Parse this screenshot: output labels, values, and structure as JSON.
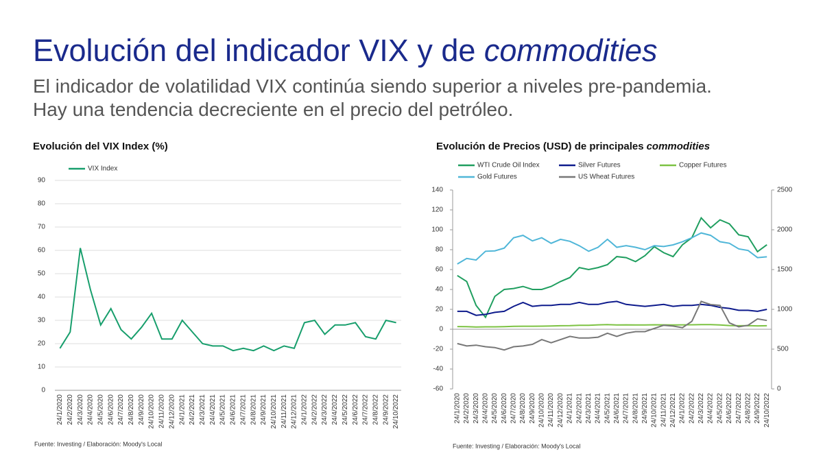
{
  "slide": {
    "title": "Evolución del indicador VIX y de",
    "title_italic": "commodities",
    "subtitle": [
      "El indicador de volatilidad VIX continúa siendo superior a niveles pre-pandemia.",
      "Hay una tendencia decreciente en el precio del petróleo."
    ]
  },
  "chart_data": [
    {
      "type": "line",
      "title": "Evolución del VIX Index (%)",
      "legend": "top-left",
      "grid": true,
      "categories": [
        "24/1/2020",
        "24/2/2020",
        "24/3/2020",
        "24/4/2020",
        "24/5/2020",
        "24/6/2020",
        "24/7/2020",
        "24/8/2020",
        "24/9/2020",
        "24/10/2020",
        "24/11/2020",
        "24/12/2020",
        "24/1/2021",
        "24/2/2021",
        "24/3/2021",
        "24/4/2021",
        "24/5/2021",
        "24/6/2021",
        "24/7/2021",
        "24/8/2021",
        "24/9/2021",
        "24/10/2021",
        "24/11/2021",
        "24/12/2021",
        "24/1/2022",
        "24/2/2022",
        "24/3/2022",
        "24/4/2022",
        "24/5/2022",
        "24/6/2022",
        "24/7/2022",
        "24/8/2022",
        "24/9/2022",
        "24/10/2022"
      ],
      "series": [
        {
          "name": "VIX Index",
          "color": "#179e6c",
          "values": [
            18,
            25,
            61,
            43,
            28,
            35,
            26,
            22,
            27,
            33,
            22,
            22,
            30,
            25,
            20,
            19,
            19,
            17,
            18,
            17,
            19,
            17,
            19,
            18,
            29,
            30,
            24,
            28,
            28,
            29,
            23,
            22,
            30,
            29
          ]
        }
      ],
      "ylim": [
        0,
        90
      ],
      "yticks": [
        0,
        10,
        20,
        30,
        40,
        50,
        60,
        70,
        80,
        90
      ],
      "source": "Fuente: Investing / Elaboración: Moody's Local"
    },
    {
      "type": "line",
      "title": "Evolución de Precios (USD) de principales",
      "title_italic": "commodities",
      "legend": "top",
      "grid": false,
      "categories": [
        "24/1/2020",
        "24/2/2020",
        "24/3/2020",
        "24/4/2020",
        "24/5/2020",
        "24/6/2020",
        "24/7/2020",
        "24/8/2020",
        "24/9/2020",
        "24/10/2020",
        "24/11/2020",
        "24/12/2020",
        "24/1/2021",
        "24/2/2021",
        "24/3/2021",
        "24/4/2021",
        "24/5/2021",
        "24/6/2021",
        "24/7/2021",
        "24/8/2021",
        "24/9/2021",
        "24/10/2021",
        "24/11/2021",
        "24/12/2021",
        "24/1/2022",
        "24/2/2022",
        "24/3/2022",
        "24/4/2022",
        "24/5/2022",
        "24/6/2022",
        "24/7/2022",
        "24/8/2022",
        "24/9/2022",
        "24/10/2022"
      ],
      "series": [
        {
          "name": "WTI Crude Oil Index",
          "color": "#1f9e5f",
          "values": [
            54,
            48,
            24,
            12,
            33,
            40,
            41,
            43,
            40,
            40,
            43,
            48,
            52,
            62,
            60,
            62,
            65,
            73,
            72,
            68,
            74,
            83,
            77,
            73,
            85,
            92,
            112,
            102,
            110,
            106,
            95,
            93,
            78,
            85
          ]
        },
        {
          "name": "Silver Futures",
          "color": "#0d1a8c",
          "values": [
            18,
            18,
            14,
            15,
            17,
            18,
            23,
            27,
            23,
            24,
            24,
            25,
            25,
            27,
            25,
            25,
            27,
            28,
            25,
            24,
            23,
            24,
            25,
            23,
            24,
            24,
            25,
            24,
            22,
            21,
            19,
            19,
            18,
            20
          ]
        },
        {
          "name": "Copper Futures",
          "color": "#7cc242",
          "values": [
            2.7,
            2.6,
            2.2,
            2.4,
            2.4,
            2.6,
            2.9,
            3.0,
            3.0,
            3.1,
            3.3,
            3.5,
            3.6,
            4.0,
            4.0,
            4.4,
            4.6,
            4.3,
            4.4,
            4.3,
            4.3,
            4.5,
            4.4,
            4.3,
            4.4,
            4.5,
            4.6,
            4.6,
            4.3,
            3.7,
            3.5,
            3.6,
            3.4,
            3.5
          ]
        },
        {
          "name": "Gold Futures",
          "color": "#4fb6d8",
          "axis": "y2",
          "values": [
            1570,
            1640,
            1620,
            1730,
            1735,
            1770,
            1900,
            1930,
            1860,
            1900,
            1830,
            1880,
            1855,
            1800,
            1730,
            1780,
            1880,
            1780,
            1800,
            1780,
            1750,
            1800,
            1790,
            1810,
            1850,
            1900,
            1960,
            1930,
            1850,
            1830,
            1760,
            1740,
            1650,
            1660
          ]
        },
        {
          "name": "US Wheat Futures",
          "color": "#777777",
          "axis": "y2",
          "values": [
            570,
            540,
            550,
            530,
            520,
            490,
            530,
            540,
            560,
            620,
            580,
            620,
            660,
            640,
            640,
            650,
            700,
            660,
            700,
            720,
            720,
            760,
            800,
            790,
            770,
            850,
            1100,
            1060,
            1050,
            830,
            780,
            800,
            880,
            860
          ]
        }
      ],
      "ylim": [
        -60,
        140
      ],
      "yticks": [
        -60,
        -40,
        -20,
        0,
        20,
        40,
        60,
        80,
        100,
        120,
        140
      ],
      "y2lim": [
        0,
        2500
      ],
      "y2ticks": [
        0,
        500,
        1000,
        1500,
        2000,
        2500
      ],
      "source": "Fuente: Investing / Elaboración: Moody's Local"
    }
  ]
}
